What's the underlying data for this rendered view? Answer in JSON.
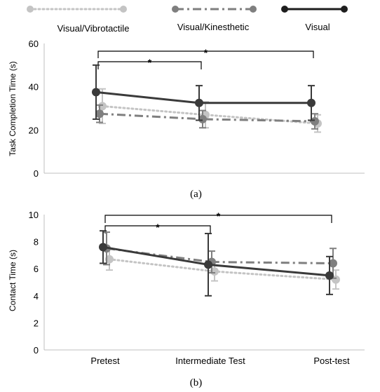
{
  "legend": [
    {
      "name": "Visual/Vibrotactile",
      "color": "#c4c4c4",
      "dash": "dotted"
    },
    {
      "name": "Visual/Kinesthetic",
      "color": "#7f7f7f",
      "dash": "dashdot"
    },
    {
      "name": "Visual",
      "color": "#3a3a3a",
      "dash": "solid"
    }
  ],
  "chart_data": [
    {
      "type": "line",
      "caption": "(a)",
      "ylabel": "Task Completion Time (s)",
      "categories": [
        "Pretest",
        "Intermediate Test",
        "Post-test"
      ],
      "ylim": [
        0,
        60
      ],
      "yticks": [
        0,
        20,
        40,
        60
      ],
      "show_xticklabels": false,
      "series": [
        {
          "name": "Visual/Vibrotactile",
          "values": [
            31,
            27,
            23
          ],
          "errors": [
            8,
            6,
            4
          ]
        },
        {
          "name": "Visual/Kinesthetic",
          "values": [
            27.5,
            25,
            24
          ],
          "errors": [
            4,
            4,
            3.5
          ]
        },
        {
          "name": "Visual",
          "values": [
            37.5,
            32.5,
            32.5
          ],
          "errors": [
            12.5,
            8,
            8
          ]
        }
      ],
      "significance": [
        {
          "from": "Pretest",
          "to": "Intermediate Test",
          "label": "*"
        },
        {
          "from": "Pretest",
          "to": "Post-test",
          "label": "*"
        }
      ]
    },
    {
      "type": "line",
      "caption": "(b)",
      "ylabel": "Contact Time  (s)",
      "categories": [
        "Pretest",
        "Intermediate Test",
        "Post-test"
      ],
      "ylim": [
        0,
        10
      ],
      "yticks": [
        0,
        2,
        4,
        6,
        8,
        10
      ],
      "show_xticklabels": true,
      "series": [
        {
          "name": "Visual/Vibrotactile",
          "values": [
            6.7,
            5.8,
            5.2
          ],
          "errors": [
            0.8,
            0.7,
            0.7
          ]
        },
        {
          "name": "Visual/Kinesthetic",
          "values": [
            7.5,
            6.5,
            6.4
          ],
          "errors": [
            1.2,
            0.8,
            1.1
          ]
        },
        {
          "name": "Visual",
          "values": [
            7.6,
            6.3,
            5.5
          ],
          "errors": [
            1.2,
            2.3,
            1.4
          ]
        }
      ],
      "significance": [
        {
          "from": "Pretest",
          "to": "Intermediate Test",
          "label": "*"
        },
        {
          "from": "Pretest",
          "to": "Post-test",
          "label": "*"
        }
      ]
    }
  ]
}
